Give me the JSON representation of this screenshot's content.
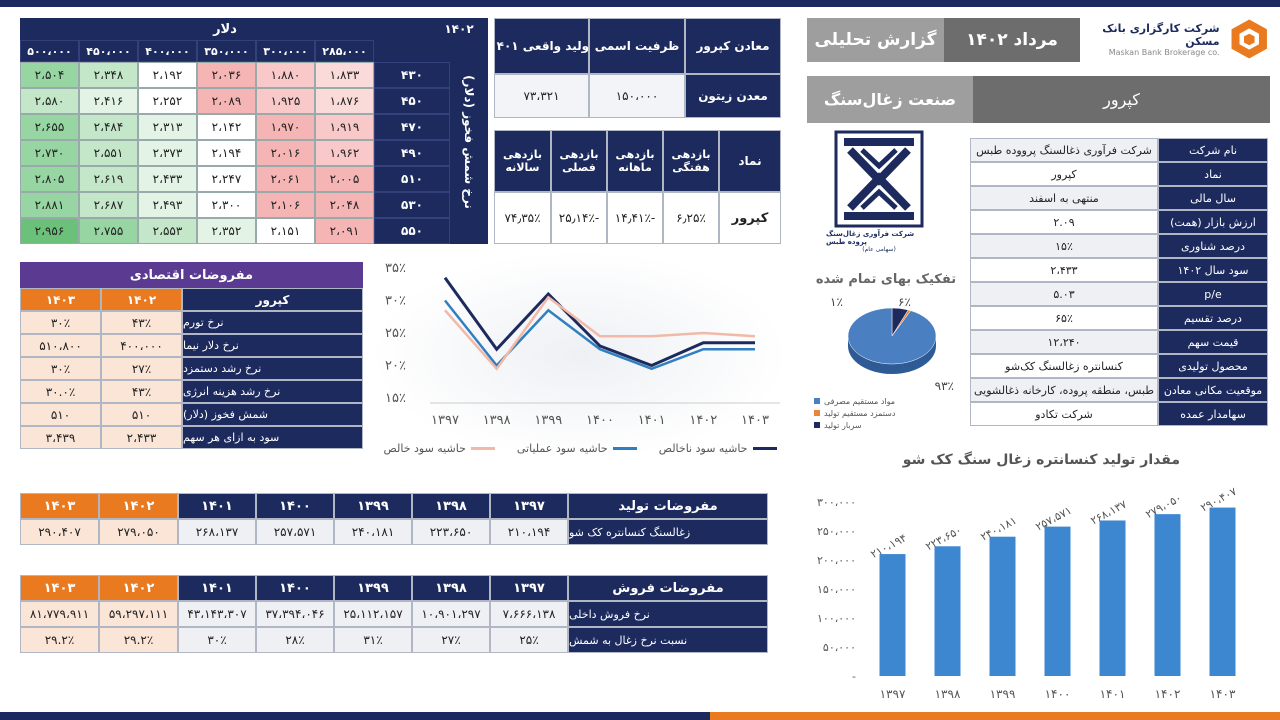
{
  "colors": {
    "navy": "#1c2a5e",
    "orange": "#ea7a1f",
    "purple": "#5b3a92",
    "red": "#f4a7a7",
    "green": "#6cc17a"
  },
  "header": {
    "date": "مرداد ۱۴۰۲",
    "report": "گزارش تحلیلی",
    "brand_fa": "شرکت کارگزاری بانک مسکن",
    "brand_en": "Maskan Bank Brokerage co.",
    "company": "کپرور",
    "industry": "صنعت زغال‌سنگ",
    "logo_caption": "شرکت فرآوری زغال‌سنگ پروده طبس",
    "logo_sub": "(سهامی عام)"
  },
  "sensitivity": {
    "year": "۱۴۰۲",
    "dollar_label": "دلار",
    "side_label": "نرخ شمش فخوز (دلار)",
    "cols": [
      "۲۸۵،۰۰۰",
      "۳۰۰،۰۰۰",
      "۳۵۰،۰۰۰",
      "۴۰۰،۰۰۰",
      "۴۵۰،۰۰۰",
      "۵۰۰،۰۰۰"
    ],
    "rows": [
      {
        "label": "۴۳۰",
        "cells": [
          "۱،۸۳۳",
          "۱،۸۸۰",
          "۲،۰۳۶",
          "۲،۱۹۲",
          "۲،۳۴۸",
          "۲،۵۰۴"
        ]
      },
      {
        "label": "۴۵۰",
        "cells": [
          "۱،۸۷۶",
          "۱،۹۲۵",
          "۲،۰۸۹",
          "۲،۲۵۲",
          "۲،۴۱۶",
          "۲،۵۸۰"
        ]
      },
      {
        "label": "۴۷۰",
        "cells": [
          "۱،۹۱۹",
          "۱،۹۷۰",
          "۲،۱۴۲",
          "۲،۳۱۳",
          "۲،۴۸۴",
          "۲،۶۵۵"
        ]
      },
      {
        "label": "۴۹۰",
        "cells": [
          "۱،۹۶۲",
          "۲،۰۱۶",
          "۲،۱۹۴",
          "۲،۳۷۳",
          "۲،۵۵۱",
          "۲،۷۳۰"
        ]
      },
      {
        "label": "۵۱۰",
        "cells": [
          "۲،۰۰۵",
          "۲،۰۶۱",
          "۲،۲۴۷",
          "۲،۴۳۳",
          "۲،۶۱۹",
          "۲،۸۰۵"
        ]
      },
      {
        "label": "۵۳۰",
        "cells": [
          "۲،۰۴۸",
          "۲،۱۰۶",
          "۲،۳۰۰",
          "۲،۴۹۳",
          "۲،۶۸۷",
          "۲،۸۸۱"
        ]
      },
      {
        "label": "۵۵۰",
        "cells": [
          "۲،۰۹۱",
          "۲،۱۵۱",
          "۲،۳۵۲",
          "۲،۵۵۳",
          "۲،۷۵۵",
          "۲،۹۵۶"
        ]
      }
    ],
    "levels": [
      [
        1,
        2,
        3,
        0,
        -2,
        -3
      ],
      [
        1,
        2,
        3,
        0,
        -1,
        -2
      ],
      [
        2,
        3,
        0,
        -1,
        -2,
        -3
      ],
      [
        2,
        3,
        0,
        -1,
        -2,
        -3
      ],
      [
        3,
        3,
        0,
        -1,
        -2,
        -3
      ],
      [
        3,
        3,
        0,
        -1,
        -2,
        -3
      ],
      [
        3,
        0,
        -1,
        -2,
        -3,
        -4
      ]
    ]
  },
  "mines": {
    "headers": [
      "معادن کپرور",
      "ظرفیت اسمی",
      "تولید واقعی ۱۴۰۱"
    ],
    "row": [
      "معدن زیتون",
      "۱۵۰،۰۰۰",
      "۷۳،۳۲۱"
    ]
  },
  "returns": {
    "headers": [
      "نماد",
      "بازدهی هفتگی",
      "بازدهی ماهانه",
      "بازدهی فصلی",
      "بازدهی سالانه"
    ],
    "row": [
      "کپرور",
      "۶٫۲۵٪",
      "-۱۴٫۴۱٪",
      "-۲۵٫۱۴٪",
      "۷۴٫۳۵٪"
    ]
  },
  "info": {
    "rows": [
      {
        "k": "نام شرکت",
        "v": "شرکت فرآوری ذغالسنگ پرووده طبس"
      },
      {
        "k": "نماد",
        "v": "کپرور"
      },
      {
        "k": "سال مالی",
        "v": "منتهی به اسفند"
      },
      {
        "k": "ارزش بازار (همت)",
        "v": "۲.۰۹"
      },
      {
        "k": "درصد شناوری",
        "v": "۱۵٪"
      },
      {
        "k": "سود سال ۱۴۰۲",
        "v": "۲،۴۳۳"
      },
      {
        "k": "p/e",
        "v": "۵.۰۳"
      },
      {
        "k": "درصد تقسیم",
        "v": "۶۵٪"
      },
      {
        "k": "قیمت سهم",
        "v": "۱۲،۲۴۰"
      },
      {
        "k": "محصول تولیدی",
        "v": "کنسانتره زغالسنگ کک‌شو"
      },
      {
        "k": "موقعیت مکانی معادن",
        "v": "طبس، منطقه پروده، کارخانه ذغالشویی"
      },
      {
        "k": "سهامدار عمده",
        "v": "شرکت تکادو"
      }
    ]
  },
  "econ": {
    "title": "مفروضات اقتصادی",
    "headers": [
      "کپرور",
      "۱۴۰۲",
      "۱۴۰۳"
    ],
    "rows": [
      [
        "نرخ تورم",
        "۴۳٪",
        "۳۰٪"
      ],
      [
        "نرخ دلار نیما",
        "۴۰۰،۰۰۰",
        "۵۱۰،۸۰۰"
      ],
      [
        "نرخ رشد دستمزد",
        "۲۷٪",
        "۳۰٪"
      ],
      [
        "نرخ رشد هزینه انرژی",
        "۴۳٪",
        "۳۰.۰٪"
      ],
      [
        "شمش فخوز (دلار)",
        "۵۱۰",
        "۵۱۰"
      ],
      [
        "سود به ازای هر سهم",
        "۲،۴۳۳",
        "۳،۴۳۹"
      ]
    ]
  },
  "prod_table": {
    "headers": [
      "مفروضات تولید",
      "۱۳۹۷",
      "۱۳۹۸",
      "۱۳۹۹",
      "۱۴۰۰",
      "۱۴۰۱",
      "۱۴۰۲",
      "۱۴۰۳"
    ],
    "row": [
      "زغالسنگ کنسانتره کک شو",
      "۲۱۰،۱۹۴",
      "۲۲۳،۶۵۰",
      "۲۴۰،۱۸۱",
      "۲۵۷،۵۷۱",
      "۲۶۸،۱۳۷",
      "۲۷۹،۰۵۰",
      "۲۹۰،۴۰۷"
    ]
  },
  "sales_table": {
    "headers": [
      "مفروضات فروش",
      "۱۳۹۷",
      "۱۳۹۸",
      "۱۳۹۹",
      "۱۴۰۰",
      "۱۴۰۱",
      "۱۴۰۲",
      "۱۴۰۳"
    ],
    "rows": [
      [
        "نرخ فروش داخلی",
        "۷،۶۶۶،۱۳۸",
        "۱۰،۹۰۱،۲۹۷",
        "۲۵،۱۱۲،۱۵۷",
        "۳۷،۳۹۴،۰۴۶",
        "۴۳،۱۴۳،۳۰۷",
        "۵۹،۲۹۷،۱۱۱",
        "۸۱،۷۷۹،۹۱۱"
      ],
      [
        "نسبت نرخ زغال به شمش",
        "۲۵٪",
        "۲۷٪",
        "۳۱٪",
        "۲۸٪",
        "۳۰٪",
        "۲۹.۲٪",
        "۲۹.۲٪"
      ]
    ]
  },
  "chart_data": [
    {
      "type": "line",
      "x": [
        "۱۳۹۷",
        "۱۳۹۸",
        "۱۳۹۹",
        "۱۴۰۰",
        "۱۴۰۱",
        "۱۴۰۲",
        "۱۴۰۳"
      ],
      "yticks": [
        "۳۵٪",
        "۳۰٪",
        "۲۵٪",
        "۲۰٪",
        "۱۵٪"
      ],
      "ylim": [
        15,
        35
      ],
      "series": [
        {
          "name": "حاشیه سود ناخالص",
          "color": "#1c2a5e",
          "values": [
            33.5,
            22.5,
            31,
            23,
            20,
            23.5,
            23.5
          ]
        },
        {
          "name": "حاشیه سود عملیاتی",
          "color": "#2f7fc1",
          "values": [
            30,
            20,
            28.5,
            22.5,
            19.5,
            22.5,
            22.5
          ]
        },
        {
          "name": "حاشیه سود خالص",
          "color": "#f2b9a8",
          "values": [
            28.5,
            19.5,
            30.5,
            24.5,
            24.5,
            25,
            24.5
          ]
        }
      ]
    },
    {
      "type": "pie",
      "title": "تفکیک بهای تمام شده",
      "labels": [
        "مواد مستقیم مصرفی",
        "دستمزد مستقیم تولید",
        "سربار تولید"
      ],
      "values": [
        93,
        1,
        6
      ],
      "value_labels": [
        "۹۳٪",
        "۱٪",
        "۶٪"
      ],
      "colors": [
        "#4a7fc1",
        "#e8873a",
        "#1c2a5e"
      ]
    },
    {
      "type": "bar",
      "title": "مقدار تولید کنسانتره زغال سنگ کک شو",
      "categories": [
        "۱۳۹۷",
        "۱۳۹۸",
        "۱۳۹۹",
        "۱۴۰۰",
        "۱۴۰۱",
        "۱۴۰۲",
        "۱۴۰۳"
      ],
      "values": [
        210194,
        223650,
        240181,
        257571,
        268137,
        279050,
        290407
      ],
      "value_labels": [
        "۲۱۰،۱۹۴",
        "۲۲۳،۶۵۰",
        "۲۴۰،۱۸۱",
        "۲۵۷،۵۷۱",
        "۲۶۸،۱۳۷",
        "۲۷۹،۰۵۰",
        "۲۹۰،۴۰۷"
      ],
      "yticks": [
        "۳۰۰،۰۰۰",
        "۲۵۰،۰۰۰",
        "۲۰۰،۰۰۰",
        "۱۵۰،۰۰۰",
        "۱۰۰،۰۰۰",
        "۵۰،۰۰۰",
        "-"
      ],
      "ylim": [
        0,
        300000
      ]
    }
  ]
}
